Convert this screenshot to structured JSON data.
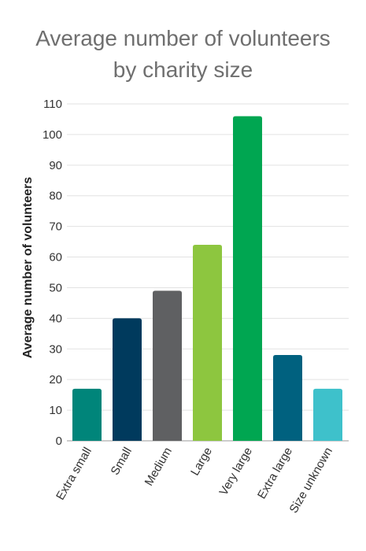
{
  "chart_data": {
    "type": "bar",
    "title_lines": [
      "Average number of volunteers",
      "by charity size"
    ],
    "xlabel": "",
    "ylabel": "Average number of volunteers",
    "ylim": [
      0,
      110
    ],
    "yticks": [
      0,
      10,
      20,
      30,
      40,
      50,
      60,
      70,
      80,
      90,
      100,
      110
    ],
    "grid": true,
    "legend": "none",
    "categories": [
      "Extra small",
      "Small",
      "Medium",
      "Large",
      "Very large",
      "Extra large",
      "Size unknown"
    ],
    "values": [
      17,
      40,
      49,
      64,
      106,
      28,
      17
    ],
    "colors": [
      "#00857a",
      "#003a5d",
      "#5f6062",
      "#8dc63f",
      "#00a651",
      "#00617f",
      "#3ec1cb"
    ]
  }
}
